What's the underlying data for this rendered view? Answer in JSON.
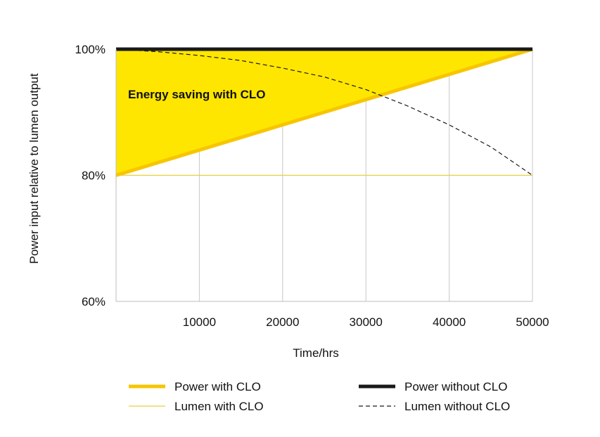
{
  "chart_data": {
    "type": "line",
    "title": "",
    "xlabel": "Time/hrs",
    "ylabel": "Power input relative to lumen output",
    "xlim": [
      0,
      50000
    ],
    "ylim": [
      60,
      100
    ],
    "x_ticks": [
      10000,
      20000,
      30000,
      40000,
      50000
    ],
    "x_tick_labels": [
      "10000",
      "20000",
      "30000",
      "40000",
      "50000"
    ],
    "y_ticks": [
      60,
      80,
      100
    ],
    "y_tick_labels": [
      "60%",
      "80%",
      "100%"
    ],
    "grid": "vertical",
    "annotation": {
      "text": "Energy saving with CLO",
      "fill_between": [
        "Power with CLO",
        "Power without CLO"
      ],
      "fill_color": "#ffe600"
    },
    "series": [
      {
        "name": "Power with CLO",
        "style": "thick-solid",
        "color": "#f7c600",
        "x": [
          0,
          50000
        ],
        "y": [
          80,
          100
        ]
      },
      {
        "name": "Power without CLO",
        "style": "thick-solid",
        "color": "#1a1a1a",
        "x": [
          0,
          50000
        ],
        "y": [
          100,
          100
        ]
      },
      {
        "name": "Lumen with CLO",
        "style": "thin-solid",
        "color": "#e8cf3a",
        "x": [
          0,
          50000
        ],
        "y": [
          80,
          80
        ]
      },
      {
        "name": "Lumen without CLO",
        "style": "dashed",
        "color": "#1a1a1a",
        "x": [
          0,
          5000,
          10000,
          15000,
          20000,
          25000,
          30000,
          35000,
          40000,
          45000,
          50000
        ],
        "y": [
          100,
          99.6,
          99.0,
          98.2,
          97.0,
          95.6,
          93.6,
          91.0,
          88.0,
          84.5,
          80.0
        ]
      }
    ],
    "legend": {
      "placement": "bottom",
      "items": [
        {
          "label": "Power with CLO",
          "series": "Power with CLO"
        },
        {
          "label": "Power without CLO",
          "series": "Power without CLO"
        },
        {
          "label": "Lumen with CLO",
          "series": "Lumen with CLO"
        },
        {
          "label": "Lumen without CLO",
          "series": "Lumen without CLO"
        }
      ]
    }
  }
}
